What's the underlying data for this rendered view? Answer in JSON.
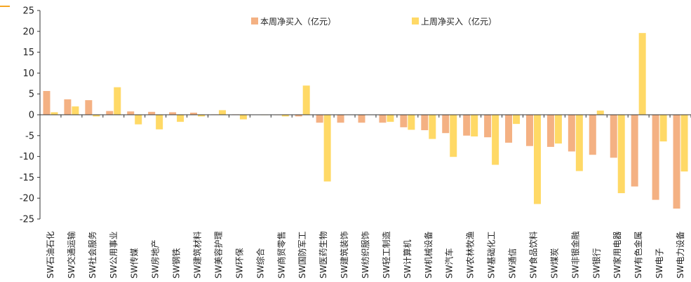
{
  "chart_data": {
    "type": "bar",
    "title": "",
    "xlabel": "",
    "ylabel": "",
    "ylim": [
      -25,
      25
    ],
    "yticks": [
      -25,
      -20,
      -15,
      -10,
      -5,
      0,
      5,
      10,
      15,
      20,
      25
    ],
    "grid": false,
    "legend_position": "top",
    "categories": [
      "SW石油石化",
      "SW交通运输",
      "SW社会服务",
      "SW公用事业",
      "SW传媒",
      "SW房地产",
      "SW钢铁",
      "SW建筑材料",
      "SW美容护理",
      "SW环保",
      "SW综合",
      "SW商贸零售",
      "SW国防军工",
      "SW医药生物",
      "SW建筑装饰",
      "SW纺织服饰",
      "SW轻工制造",
      "SW计算机",
      "SW机械设备",
      "SW汽车",
      "SW农林牧渔",
      "SW基础化工",
      "SW通信",
      "SW食品饮料",
      "SW煤炭",
      "SW非银金融",
      "SW银行",
      "SW家用电器",
      "SW有色金属",
      "SW电子",
      "SW电力设备"
    ],
    "series": [
      {
        "name": "本周净买入（亿元）",
        "color": "#F4B183",
        "values": [
          5.7,
          3.7,
          3.5,
          0.9,
          0.8,
          0.7,
          0.6,
          0.5,
          0.1,
          0.1,
          0.0,
          -0.1,
          -0.4,
          -1.9,
          -1.9,
          -1.9,
          -1.9,
          -3.0,
          -3.7,
          -4.4,
          -5.0,
          -5.4,
          -6.7,
          -7.5,
          -7.7,
          -8.8,
          -9.6,
          -10.3,
          -17.2,
          -20.4,
          -22.5
        ]
      },
      {
        "name": "上周净买入（亿元）",
        "color": "#FFD966",
        "values": [
          0.6,
          2.0,
          -0.4,
          6.6,
          -2.3,
          -3.5,
          -1.7,
          -0.4,
          1.1,
          -1.1,
          -0.1,
          -0.4,
          7.0,
          -16.0,
          0.0,
          0.0,
          -1.7,
          -3.6,
          -5.8,
          -10.1,
          -5.2,
          -12.0,
          -2.2,
          -21.4,
          -6.9,
          -13.5,
          1.0,
          -18.8,
          19.6,
          -6.4,
          -13.6
        ]
      }
    ]
  }
}
